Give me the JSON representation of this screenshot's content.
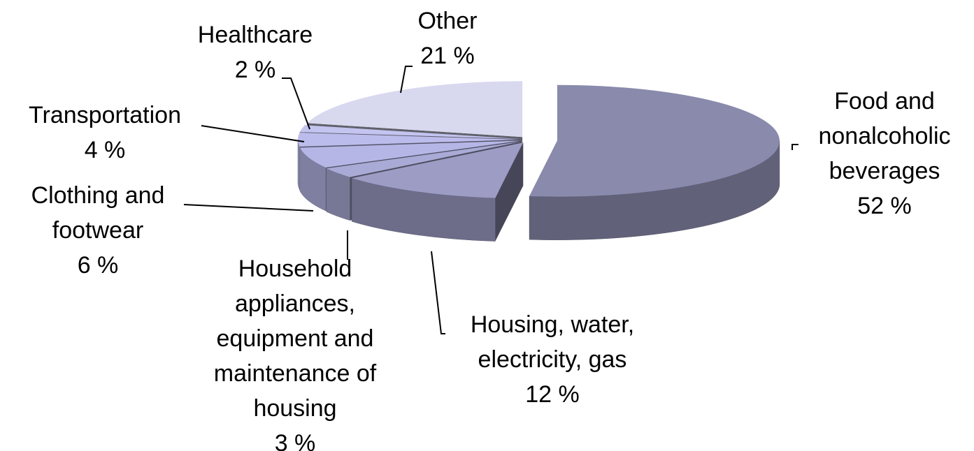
{
  "chart_data": {
    "type": "pie",
    "categories": [
      "Food and nonalcoholic beverages",
      "Housing, water, electricity, gas",
      "Household appliances, equipment and maintenance of housing",
      "Clothing and footwear",
      "Transportation",
      "Healthcare",
      "Other"
    ],
    "values": [
      52,
      12,
      3,
      6,
      4,
      2,
      21
    ],
    "value_labels": [
      "52 %",
      "12 %",
      "3 %",
      "6 %",
      "4 %",
      "2 %",
      "21 %"
    ],
    "colors": [
      "#8a8aad",
      "#9c9cc4",
      "#aaaad6",
      "#b6b6e6",
      "#bcbcec",
      "#c4c4f0",
      "#d8d8ef"
    ]
  }
}
